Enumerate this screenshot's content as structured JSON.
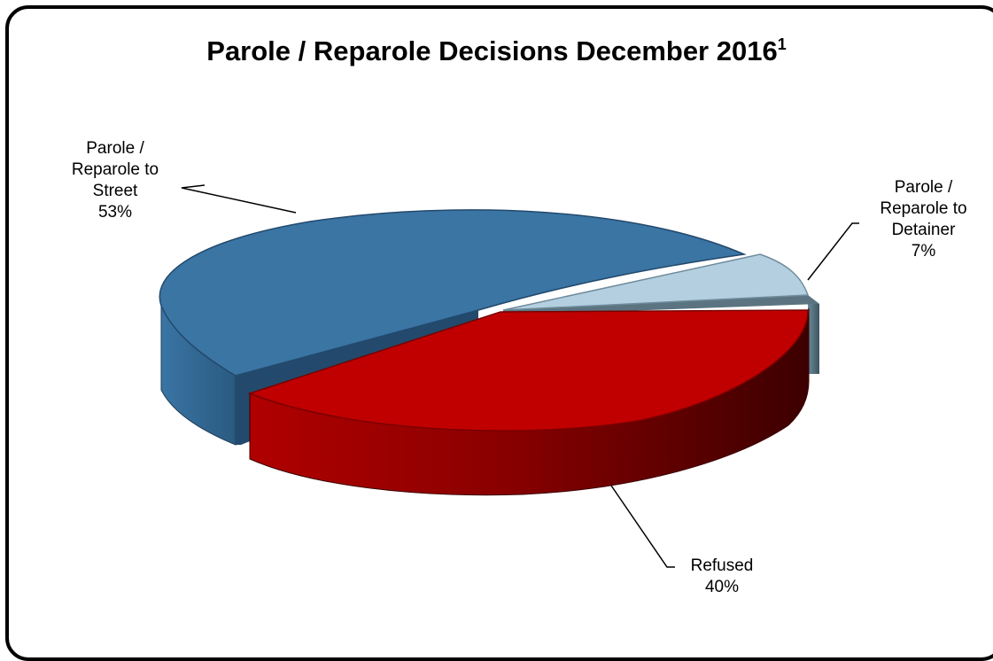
{
  "title": "Parole / Reparole Decisions December 2016",
  "title_superscript": "1",
  "chart_data": {
    "type": "pie",
    "style": "3d-exploded",
    "title": "Parole / Reparole Decisions December 2016",
    "slices": [
      {
        "label_lines": [
          "Parole /",
          "Reparole to",
          "Street"
        ],
        "value": 53,
        "value_label": "53%",
        "color": "#3a75a4"
      },
      {
        "label_lines": [
          "Parole /",
          "Reparole to",
          "Detainer"
        ],
        "value": 7,
        "value_label": "7%",
        "color": "#b3cfe0"
      },
      {
        "label_lines": [
          "Refused"
        ],
        "value": 40,
        "value_label": "40%",
        "color": "#c00000"
      }
    ]
  }
}
